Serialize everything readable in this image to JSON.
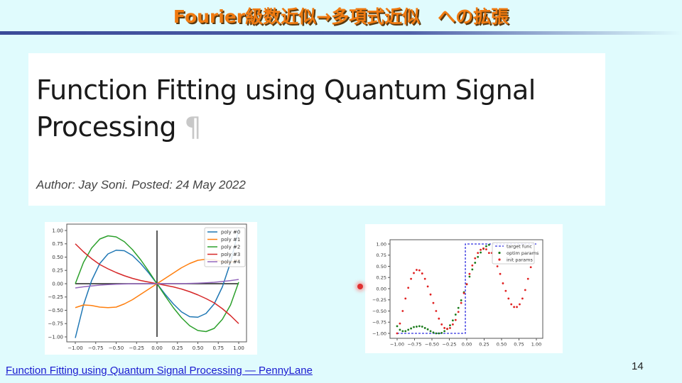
{
  "slide": {
    "title": "Fourier級数近似→多項式近似　への拡張",
    "page_number": "14",
    "link_text": "Function Fitting using Quantum Signal Processing — PennyLane"
  },
  "card": {
    "title": "Function Fitting using Quantum Signal Processing",
    "pilcrow": "¶",
    "author": "Author: Jay Soni. Posted: 24 May 2022"
  },
  "colors": {
    "title": "#f07a10",
    "background": "#e0fbfd",
    "link": "#1a1ad0"
  },
  "chart_data": [
    {
      "type": "line",
      "xlim": [
        -1.0,
        1.0
      ],
      "ylim": [
        -1.0,
        1.0
      ],
      "x_ticks": [
        "−1.00",
        "−0.75",
        "−0.50",
        "−0.25",
        "0.00",
        "0.25",
        "0.50",
        "0.75",
        "1.00"
      ],
      "y_ticks": [
        "1.00",
        "0.75",
        "0.50",
        "0.25",
        "0.00",
        "−0.25",
        "−0.50",
        "−0.75",
        "−1.00"
      ],
      "legend": "top-right",
      "x": [
        -1.0,
        -0.9,
        -0.8,
        -0.7,
        -0.6,
        -0.5,
        -0.4,
        -0.3,
        -0.2,
        -0.1,
        0.0,
        0.1,
        0.2,
        0.3,
        0.4,
        0.5,
        0.6,
        0.7,
        0.8,
        0.9,
        1.0
      ],
      "series": [
        {
          "name": "poly #0",
          "color": "#1f77b4",
          "values": [
            -1.02,
            -0.4,
            0.06,
            0.38,
            0.56,
            0.63,
            0.62,
            0.53,
            0.38,
            0.2,
            0,
            -0.2,
            -0.38,
            -0.53,
            -0.62,
            -0.63,
            -0.56,
            -0.38,
            -0.06,
            0.4,
            1.02
          ]
        },
        {
          "name": "poly #1",
          "color": "#ff7f0e",
          "values": [
            -0.45,
            -0.4,
            -0.41,
            -0.44,
            -0.45,
            -0.44,
            -0.38,
            -0.3,
            -0.2,
            -0.1,
            0,
            0.1,
            0.2,
            0.3,
            0.38,
            0.44,
            0.46,
            0.45,
            0.41,
            0.4,
            0.45
          ]
        },
        {
          "name": "poly #2",
          "color": "#2ca02c",
          "values": [
            0.0,
            0.4,
            0.67,
            0.84,
            0.9,
            0.88,
            0.79,
            0.64,
            0.45,
            0.23,
            0,
            -0.23,
            -0.45,
            -0.64,
            -0.79,
            -0.88,
            -0.9,
            -0.84,
            -0.67,
            -0.4,
            0.03
          ]
        },
        {
          "name": "poly #3",
          "color": "#d62728",
          "values": [
            0.75,
            0.6,
            0.47,
            0.36,
            0.28,
            0.21,
            0.15,
            0.1,
            0.06,
            0.03,
            0,
            -0.03,
            -0.06,
            -0.1,
            -0.15,
            -0.21,
            -0.28,
            -0.36,
            -0.47,
            -0.6,
            -0.75
          ]
        },
        {
          "name": "poly #4",
          "color": "#9467bd",
          "values": [
            -0.08,
            -0.058,
            -0.041,
            -0.027,
            -0.017,
            -0.01,
            -0.005,
            -0.002,
            -0.001,
            0,
            0,
            0,
            0.001,
            0.002,
            0.005,
            0.01,
            0.017,
            0.027,
            0.041,
            0.058,
            0.08
          ]
        }
      ],
      "reference_lines": {
        "horizontal_y": 0,
        "vertical_x": 0,
        "color": "#222222"
      }
    },
    {
      "type": "scatter",
      "xlim": [
        -1.0,
        1.0
      ],
      "ylim": [
        -1.0,
        1.0
      ],
      "x_ticks": [
        "−1.00",
        "−0.75",
        "−0.50",
        "−0.25",
        "0.00",
        "0.25",
        "0.50",
        "0.75",
        "1.00"
      ],
      "y_ticks": [
        "1.00",
        "0.75",
        "0.50",
        "0.25",
        "0.00",
        "−0.25",
        "−0.50",
        "−0.75",
        "−1.00"
      ],
      "legend": "top-right",
      "series": [
        {
          "name": "target func",
          "style": "dashed-line",
          "color": "#3030e0",
          "x": [
            -1.0,
            -0.02,
            -0.02,
            1.0
          ],
          "y": [
            -1.0,
            -1.0,
            1.0,
            1.0
          ]
        },
        {
          "name": "optim params",
          "style": "points",
          "color": "#1a7a1a",
          "x": [
            -1.0,
            -0.96,
            -0.92,
            -0.88,
            -0.84,
            -0.8,
            -0.76,
            -0.72,
            -0.68,
            -0.64,
            -0.6,
            -0.56,
            -0.52,
            -0.48,
            -0.44,
            -0.4,
            -0.36,
            -0.32,
            -0.28,
            -0.24,
            -0.2,
            -0.16,
            -0.12,
            -0.08,
            -0.04,
            0.0,
            0.04,
            0.08,
            0.12,
            0.16,
            0.2,
            0.24,
            0.28,
            0.32
          ],
          "y": [
            -0.84,
            -0.92,
            -0.95,
            -0.95,
            -0.92,
            -0.89,
            -0.86,
            -0.85,
            -0.84,
            -0.85,
            -0.88,
            -0.91,
            -0.95,
            -0.98,
            -1.0,
            -1.0,
            -0.99,
            -0.95,
            -0.9,
            -0.82,
            -0.71,
            -0.58,
            -0.43,
            -0.26,
            -0.08,
            0.1,
            0.27,
            0.43,
            0.58,
            0.71,
            0.81,
            0.89,
            0.95,
            0.98
          ]
        },
        {
          "name": "init params",
          "style": "points",
          "color": "#e02020",
          "x": [
            -1.0,
            -0.96,
            -0.92,
            -0.88,
            -0.84,
            -0.8,
            -0.76,
            -0.72,
            -0.68,
            -0.64,
            -0.6,
            -0.56,
            -0.52,
            -0.48,
            -0.44,
            -0.4,
            -0.36,
            -0.32,
            -0.28,
            -0.24,
            -0.2,
            -0.16,
            -0.12,
            -0.08,
            -0.04,
            0.0,
            0.04,
            0.08,
            0.12,
            0.16,
            0.2,
            0.24,
            0.28,
            0.32,
            0.36,
            0.44,
            0.48,
            0.52,
            0.56,
            0.6,
            0.64,
            0.68,
            0.72,
            0.76,
            0.8,
            0.84,
            0.88,
            0.92
          ],
          "y": [
            -1.0,
            -0.78,
            -0.5,
            -0.22,
            0.02,
            0.22,
            0.35,
            0.42,
            0.41,
            0.34,
            0.22,
            0.05,
            -0.13,
            -0.32,
            -0.5,
            -0.67,
            -0.8,
            -0.88,
            -0.9,
            -0.88,
            -0.8,
            -0.7,
            -0.52,
            -0.32,
            -0.1,
            0.1,
            0.33,
            0.52,
            0.68,
            0.8,
            0.87,
            0.9,
            0.88,
            0.8,
            0.8,
            0.5,
            0.33,
            0.12,
            -0.05,
            -0.22,
            -0.35,
            -0.41,
            -0.41,
            -0.35,
            -0.22,
            -0.03,
            0.22,
            0.48
          ]
        }
      ]
    }
  ]
}
